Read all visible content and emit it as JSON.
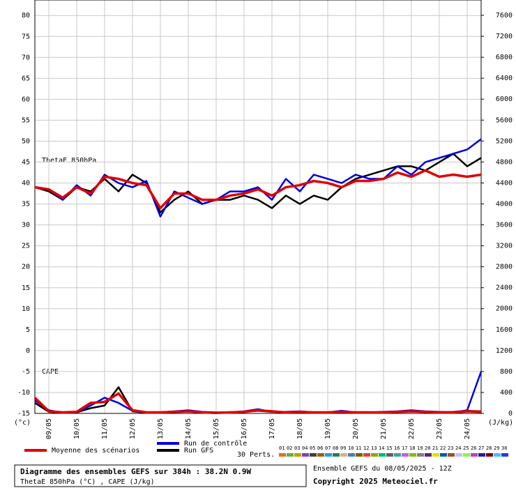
{
  "chart_data": {
    "type": "line",
    "annotations": [
      "ThetaE 850hPa",
      "CAPE"
    ],
    "ylabel": "(°c)",
    "y2label": "(J/kg)",
    "xlim": [
      0,
      384
    ],
    "xticks": [
      {
        "value": 12,
        "label": "09/05"
      },
      {
        "value": 36,
        "label": "10/05"
      },
      {
        "value": 60,
        "label": "11/05"
      },
      {
        "value": 84,
        "label": "12/05"
      },
      {
        "value": 108,
        "label": "13/05"
      },
      {
        "value": 132,
        "label": "14/05"
      },
      {
        "value": 156,
        "label": "15/05"
      },
      {
        "value": 180,
        "label": "16/05"
      },
      {
        "value": 204,
        "label": "17/05"
      },
      {
        "value": 228,
        "label": "18/05"
      },
      {
        "value": 252,
        "label": "19/05"
      },
      {
        "value": 276,
        "label": "20/05"
      },
      {
        "value": 300,
        "label": "21/05"
      },
      {
        "value": 324,
        "label": "22/05"
      },
      {
        "value": 348,
        "label": "23/05"
      },
      {
        "value": 372,
        "label": "24/05"
      }
    ],
    "ylim": [
      -15,
      83.7
    ],
    "yticks": [
      80,
      75,
      70,
      65,
      60,
      55,
      50,
      45,
      40,
      35,
      30,
      25,
      20,
      15,
      10,
      5,
      0,
      -5,
      -10,
      -15
    ],
    "y2lim": [
      0,
      7893
    ],
    "y2ticks": [
      7600,
      7200,
      6800,
      6400,
      6000,
      5600,
      5200,
      4800,
      4400,
      4000,
      3600,
      3200,
      2800,
      2400,
      2000,
      1600,
      1200,
      800,
      400,
      0
    ],
    "grid": true,
    "x": [
      0,
      12,
      24,
      36,
      48,
      60,
      72,
      84,
      96,
      108,
      120,
      132,
      144,
      156,
      168,
      180,
      192,
      204,
      216,
      228,
      240,
      252,
      264,
      276,
      288,
      300,
      312,
      324,
      336,
      348,
      360,
      372,
      384
    ],
    "series": [
      {
        "name": "Moyenne des scénarios",
        "color": "#e00000",
        "width": 3.5,
        "values": [
          39,
          38.5,
          36.5,
          39,
          37.5,
          41.5,
          41,
          40,
          39.5,
          34,
          37.5,
          37.5,
          36,
          36,
          37,
          37.5,
          38.5,
          37,
          39,
          39.5,
          40.5,
          40,
          39,
          40.5,
          40.5,
          41,
          42.5,
          41.5,
          43,
          41.5,
          42,
          41.5,
          42
        ]
      },
      {
        "name": "Run de contrôle",
        "color": "#0000e0",
        "width": 2.5,
        "values": [
          39,
          38.5,
          36,
          39.5,
          37,
          42,
          40,
          39,
          40.5,
          32,
          38,
          36.5,
          35,
          36,
          38,
          38,
          39,
          36,
          41,
          38,
          42,
          41,
          40,
          42,
          41,
          41,
          44,
          42,
          45,
          46,
          47,
          48,
          50.5
        ]
      },
      {
        "name": "Run GFS",
        "color": "#000000",
        "width": 2.5,
        "values": [
          39,
          38,
          36,
          39,
          38,
          41,
          38,
          42,
          40,
          33,
          36,
          38,
          35,
          36,
          36,
          37,
          36,
          34,
          37,
          35,
          37,
          36,
          39,
          41,
          42,
          43,
          44,
          44,
          43,
          45,
          47,
          44,
          46
        ]
      },
      {
        "axis": "y2",
        "color": "#e00000",
        "width": 3.5,
        "values": [
          300,
          40,
          20,
          30,
          200,
          220,
          380,
          60,
          20,
          20,
          30,
          40,
          20,
          10,
          20,
          30,
          60,
          40,
          20,
          30,
          20,
          20,
          30,
          20,
          20,
          20,
          30,
          40,
          30,
          20,
          20,
          40,
          30
        ]
      },
      {
        "axis": "y2",
        "color": "#0000e0",
        "width": 2.5,
        "values": [
          250,
          60,
          10,
          20,
          150,
          300,
          200,
          50,
          10,
          20,
          40,
          60,
          30,
          20,
          20,
          40,
          80,
          30,
          30,
          40,
          20,
          20,
          50,
          20,
          20,
          30,
          40,
          60,
          40,
          30,
          20,
          60,
          800
        ]
      },
      {
        "axis": "y2",
        "color": "#000000",
        "width": 2.5,
        "values": [
          200,
          30,
          10,
          20,
          100,
          150,
          500,
          40,
          10,
          20,
          30,
          50,
          20,
          10,
          20,
          30,
          50,
          30,
          20,
          30,
          20,
          20,
          40,
          20,
          20,
          20,
          30,
          50,
          30,
          20,
          30,
          50,
          40
        ]
      }
    ],
    "perturbations": {
      "label": "30 Perts.",
      "ids": [
        "01",
        "02",
        "03",
        "04",
        "05",
        "06",
        "07",
        "08",
        "09",
        "10",
        "11",
        "12",
        "13",
        "14",
        "15",
        "16",
        "17",
        "18",
        "19",
        "20",
        "21",
        "22",
        "23",
        "24",
        "25",
        "26",
        "27",
        "28",
        "29",
        "30"
      ],
      "colors": [
        "#e07020",
        "#60b040",
        "#c0a000",
        "#8040c0",
        "#404040",
        "#a06000",
        "#20a0e0",
        "#208060",
        "#e0b080",
        "#4080c0",
        "#806000",
        "#e04040",
        "#a0a000",
        "#00c060",
        "#606060",
        "#40a0a0",
        "#c060e0",
        "#80c000",
        "#808080",
        "#602080",
        "#e0e000",
        "#0060a0",
        "#a05020",
        "#c0c0ff",
        "#80ff40",
        "#c040c0",
        "#2020a0",
        "#800000",
        "#40c0ff",
        "#2040e0"
      ]
    },
    "footer": {
      "title": "Diagramme des ensembles GEFS sur 384h : 38.2N 0.9W",
      "subtitle": "ThetaE 850hPa (°C) , CAPE (J/kg)",
      "run": "Ensemble GEFS du 08/05/2025 - 12Z",
      "copyright": "Copyright 2025 Meteociel.fr"
    }
  }
}
